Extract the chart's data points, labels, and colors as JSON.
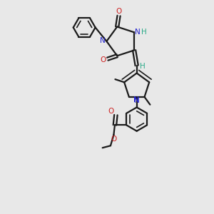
{
  "background_color": "#e8e8e8",
  "bond_color": "#1a1a1a",
  "N_color": "#2020cc",
  "O_color": "#cc2020",
  "H_color": "#2aaa88",
  "C_color": "#1a1a1a",
  "figsize": [
    3.0,
    3.0
  ],
  "dpi": 100,
  "xlim": [
    0,
    10
  ],
  "ylim": [
    0,
    10
  ]
}
